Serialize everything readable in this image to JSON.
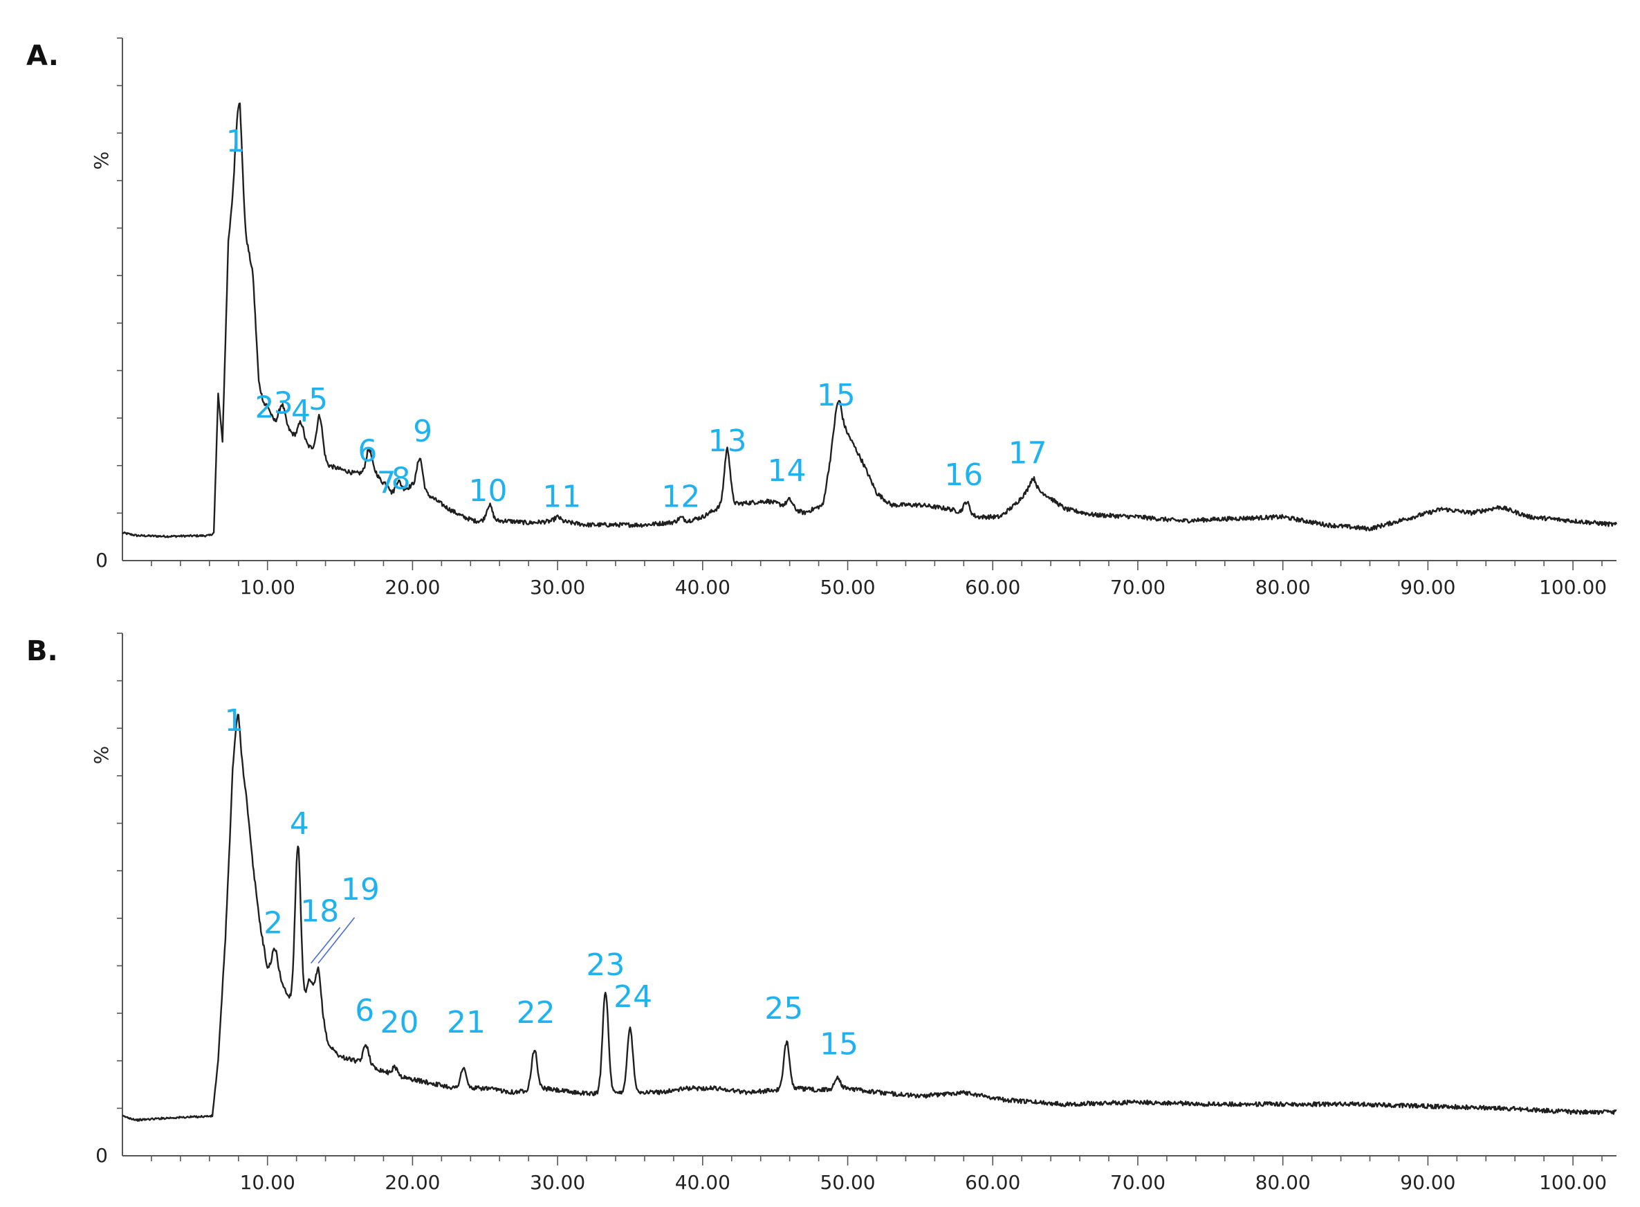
{
  "colors": {
    "trace": "#1f1f1f",
    "peak_label": "#1fb2ee",
    "axis": "#555555"
  },
  "chart_data": [
    {
      "type": "line",
      "panel_label": "A.",
      "ylabel": "%",
      "y_zero_label": "0",
      "xlim": [
        0,
        103
      ],
      "ylim": [
        0,
        100
      ],
      "x_ticks": [
        "10.00",
        "20.00",
        "30.00",
        "40.00",
        "50.00",
        "60.00",
        "70.00",
        "80.00",
        "90.00",
        "100.00"
      ],
      "baseline": [
        [
          0,
          7
        ],
        [
          1,
          6.3
        ],
        [
          3,
          6.1
        ],
        [
          6,
          6.3
        ],
        [
          6.3,
          7
        ],
        [
          6.6,
          42
        ],
        [
          6.9,
          30
        ],
        [
          7.3,
          80
        ],
        [
          7.8,
          98
        ],
        [
          8.1,
          105
        ],
        [
          8.5,
          82
        ],
        [
          9,
          72
        ],
        [
          9.4,
          45
        ],
        [
          9.8,
          38
        ],
        [
          10.2,
          36
        ],
        [
          10.5,
          35
        ],
        [
          11.2,
          34
        ],
        [
          12.2,
          30
        ],
        [
          13.2,
          28
        ],
        [
          14.2,
          24
        ],
        [
          15,
          23
        ],
        [
          16,
          22
        ],
        [
          17.5,
          22
        ],
        [
          18.5,
          16
        ],
        [
          20,
          19
        ],
        [
          21.3,
          16
        ],
        [
          22.5,
          13
        ],
        [
          23.5,
          11
        ],
        [
          24.3,
          10
        ],
        [
          26.5,
          10
        ],
        [
          28,
          9.5
        ],
        [
          30,
          10
        ],
        [
          32,
          9
        ],
        [
          34,
          9
        ],
        [
          36,
          9
        ],
        [
          37.5,
          9.5
        ],
        [
          39,
          10
        ],
        [
          40,
          11
        ],
        [
          41.4,
          14
        ],
        [
          43,
          14.5
        ],
        [
          44.5,
          15
        ],
        [
          45.5,
          14
        ],
        [
          47,
          12
        ],
        [
          48.3,
          14
        ],
        [
          49,
          30
        ],
        [
          49.5,
          36
        ],
        [
          50,
          32
        ],
        [
          51,
          25
        ],
        [
          52,
          17
        ],
        [
          53,
          14
        ],
        [
          55,
          14
        ],
        [
          57,
          13
        ],
        [
          59,
          11
        ],
        [
          60.5,
          11
        ],
        [
          61.5,
          14
        ],
        [
          62.5,
          18
        ],
        [
          63.5,
          17
        ],
        [
          65,
          13
        ],
        [
          67,
          11.5
        ],
        [
          70,
          11
        ],
        [
          73,
          10
        ],
        [
          76,
          10.5
        ],
        [
          80,
          11
        ],
        [
          83,
          9
        ],
        [
          86,
          8
        ],
        [
          89,
          11
        ],
        [
          91,
          13
        ],
        [
          93,
          12
        ],
        [
          95,
          13.5
        ],
        [
          97,
          11
        ],
        [
          100,
          10
        ],
        [
          103,
          9
        ]
      ],
      "peaks": [
        {
          "label": "1",
          "x": 8.0,
          "h": 12
        },
        {
          "label": "2",
          "x": 10.0,
          "h": 2
        },
        {
          "label": "3",
          "x": 11.0,
          "h": 5
        },
        {
          "label": "4",
          "x": 12.3,
          "h": 5
        },
        {
          "label": "5",
          "x": 13.6,
          "h": 10
        },
        {
          "label": "6",
          "x": 17.0,
          "h": 6
        },
        {
          "label": "7",
          "x": 18.3,
          "h": 2
        },
        {
          "label": "8",
          "x": 19.0,
          "h": 3
        },
        {
          "label": "9",
          "x": 20.5,
          "h": 8
        },
        {
          "label": "10",
          "x": 25.3,
          "h": 4
        },
        {
          "label": "11",
          "x": 30.0,
          "h": 1
        },
        {
          "label": "12",
          "x": 38.5,
          "h": 1
        },
        {
          "label": "13",
          "x": 41.7,
          "h": 14
        },
        {
          "label": "14",
          "x": 46.0,
          "h": 2
        },
        {
          "label": "15",
          "x": 49.3,
          "h": 6
        },
        {
          "label": "16",
          "x": 58.2,
          "h": 3
        },
        {
          "label": "17",
          "x": 62.8,
          "h": 3
        }
      ],
      "annotations": [
        {
          "label": "1",
          "x": 7.8,
          "y": 103
        },
        {
          "label": "2",
          "x": 9.8,
          "y": 36
        },
        {
          "label": "3",
          "x": 11.1,
          "y": 37
        },
        {
          "label": "4",
          "x": 12.3,
          "y": 35
        },
        {
          "label": "5",
          "x": 13.5,
          "y": 38
        },
        {
          "label": "6",
          "x": 16.9,
          "y": 25
        },
        {
          "label": "7",
          "x": 18.2,
          "y": 17
        },
        {
          "label": "8",
          "x": 19.2,
          "y": 18
        },
        {
          "label": "9",
          "x": 20.7,
          "y": 30
        },
        {
          "label": "10",
          "x": 25.2,
          "y": 15
        },
        {
          "label": "11",
          "x": 30.3,
          "y": 13.5
        },
        {
          "label": "12",
          "x": 38.5,
          "y": 13.5
        },
        {
          "label": "13",
          "x": 41.7,
          "y": 27.5
        },
        {
          "label": "14",
          "x": 45.8,
          "y": 20
        },
        {
          "label": "15",
          "x": 49.2,
          "y": 39
        },
        {
          "label": "16",
          "x": 58.0,
          "y": 19
        },
        {
          "label": "17",
          "x": 62.4,
          "y": 24.5
        }
      ]
    },
    {
      "type": "line",
      "panel_label": "B.",
      "ylabel": "%",
      "y_zero_label": "0",
      "xlim": [
        0,
        103
      ],
      "ylim": [
        0,
        100
      ],
      "x_ticks": [
        "10.00",
        "20.00",
        "30.00",
        "40.00",
        "50.00",
        "60.00",
        "70.00",
        "80.00",
        "90.00",
        "100.00"
      ],
      "baseline": [
        [
          0,
          10
        ],
        [
          1,
          9
        ],
        [
          3,
          9.5
        ],
        [
          6.2,
          10
        ],
        [
          6.6,
          24
        ],
        [
          7.1,
          55
        ],
        [
          7.6,
          95
        ],
        [
          8.0,
          104
        ],
        [
          8.5,
          92
        ],
        [
          9,
          73
        ],
        [
          9.5,
          58
        ],
        [
          10,
          47
        ],
        [
          10.6,
          47
        ],
        [
          11.3,
          41
        ],
        [
          12.1,
          36
        ],
        [
          12.8,
          38
        ],
        [
          13.5,
          39
        ],
        [
          14.2,
          28
        ],
        [
          15,
          25
        ],
        [
          16,
          24
        ],
        [
          17.5,
          22
        ],
        [
          19,
          20
        ],
        [
          21,
          18.5
        ],
        [
          23,
          17
        ],
        [
          25,
          17
        ],
        [
          27,
          16
        ],
        [
          29,
          17
        ],
        [
          31,
          16
        ],
        [
          33,
          15.5
        ],
        [
          35,
          16
        ],
        [
          37,
          16
        ],
        [
          39,
          17
        ],
        [
          41,
          17
        ],
        [
          43,
          16
        ],
        [
          45,
          16.5
        ],
        [
          46.5,
          17
        ],
        [
          48,
          16.5
        ],
        [
          50,
          17
        ],
        [
          52,
          16
        ],
        [
          55,
          15
        ],
        [
          58,
          16
        ],
        [
          61,
          14
        ],
        [
          65,
          13
        ],
        [
          70,
          13.5
        ],
        [
          75,
          13
        ],
        [
          80,
          13
        ],
        [
          85,
          13
        ],
        [
          90,
          12.5
        ],
        [
          95,
          12
        ],
        [
          100,
          11
        ],
        [
          103,
          11
        ]
      ],
      "peaks": [
        {
          "label": "1",
          "x": 7.9,
          "h": 8
        },
        {
          "label": "2",
          "x": 10.5,
          "h": 5
        },
        {
          "label": "4",
          "x": 12.1,
          "h": 42
        },
        {
          "label": "18",
          "x": 12.9,
          "h": 6
        },
        {
          "label": "19",
          "x": 13.5,
          "h": 8
        },
        {
          "label": "6",
          "x": 16.8,
          "h": 5
        },
        {
          "label": "20",
          "x": 18.8,
          "h": 2
        },
        {
          "label": "21",
          "x": 23.5,
          "h": 5
        },
        {
          "label": "22",
          "x": 28.4,
          "h": 10
        },
        {
          "label": "23",
          "x": 33.3,
          "h": 26
        },
        {
          "label": "24",
          "x": 35.0,
          "h": 16
        },
        {
          "label": "25",
          "x": 45.8,
          "h": 12
        },
        {
          "label": "15",
          "x": 49.3,
          "h": 3
        }
      ],
      "annotations": [
        {
          "label": "1",
          "x": 7.7,
          "y": 107
        },
        {
          "label": "2",
          "x": 10.4,
          "y": 56
        },
        {
          "label": "4",
          "x": 12.2,
          "y": 81
        },
        {
          "label": "18",
          "x": 13.6,
          "y": 59
        },
        {
          "label": "19",
          "x": 16.4,
          "y": 64.5
        },
        {
          "label": "6",
          "x": 16.7,
          "y": 34
        },
        {
          "label": "20",
          "x": 19.1,
          "y": 31
        },
        {
          "label": "21",
          "x": 23.7,
          "y": 31
        },
        {
          "label": "22",
          "x": 28.5,
          "y": 33.5
        },
        {
          "label": "23",
          "x": 33.3,
          "y": 45.5
        },
        {
          "label": "24",
          "x": 35.2,
          "y": 37.5
        },
        {
          "label": "25",
          "x": 45.6,
          "y": 34.5
        },
        {
          "label": "15",
          "x": 49.4,
          "y": 25.5
        }
      ],
      "callout_lines": [
        {
          "from": [
            13.0,
            48.5
          ],
          "to": [
            15.0,
            57.5
          ]
        },
        {
          "from": [
            13.5,
            48.5
          ],
          "to": [
            16.0,
            60.0
          ]
        }
      ]
    }
  ]
}
